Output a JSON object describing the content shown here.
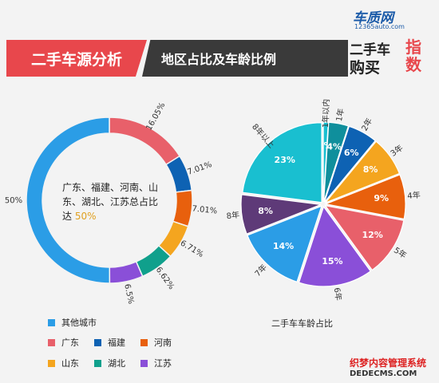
{
  "header": {
    "title": "二手车源分析",
    "subtitle": "地区占比及车龄比例"
  },
  "logo": {
    "site": "车质网",
    "url": "12365auto.com",
    "line1": "二手车",
    "line2": "购买",
    "zhi": "指数"
  },
  "watermark": {
    "line1": "织梦内容管理系统",
    "line2": "DEDECMS.COM"
  },
  "donut_center": {
    "text": "广东、福建、河南、山东、湖北、江苏总占比达",
    "pct": "50%"
  },
  "pie_caption": "二手车车龄占比",
  "colors": {
    "other": "#2b9de6",
    "guangdong": "#e8606a",
    "fujian": "#0e62b3",
    "henan": "#e8600d",
    "shandong": "#f4a51f",
    "hubei": "#10a08c",
    "jiangsu": "#8a4fd8"
  },
  "legend": [
    {
      "label": "其他城市",
      "color": "#2b9de6"
    },
    {
      "label": "广东",
      "color": "#e8606a"
    },
    {
      "label": "福建",
      "color": "#0e62b3"
    },
    {
      "label": "河南",
      "color": "#e8600d"
    },
    {
      "label": "山东",
      "color": "#f4a51f"
    },
    {
      "label": "湖北",
      "color": "#10a08c"
    },
    {
      "label": "江苏",
      "color": "#8a4fd8"
    }
  ],
  "chart_data": [
    {
      "type": "pie",
      "subtype": "donut",
      "title": "地区占比",
      "slices": [
        {
          "name": "广东",
          "value": 16.05,
          "label": "16.05%",
          "color": "#e8606a"
        },
        {
          "name": "福建",
          "value": 7.01,
          "label": "7.01%",
          "color": "#0e62b3"
        },
        {
          "name": "河南",
          "value": 7.01,
          "label": "7.01%",
          "color": "#e8600d"
        },
        {
          "name": "山东",
          "value": 6.71,
          "label": "6.71%",
          "color": "#f4a51f"
        },
        {
          "name": "湖北",
          "value": 6.62,
          "label": "6.62%",
          "color": "#10a08c"
        },
        {
          "name": "江苏",
          "value": 6.5,
          "label": "6.5%",
          "color": "#8a4fd8"
        },
        {
          "name": "其他城市",
          "value": 50,
          "label": "50%",
          "color": "#2b9de6"
        }
      ]
    },
    {
      "type": "pie",
      "title": "二手车车龄占比",
      "slices": [
        {
          "name": "1年以内",
          "value": 1,
          "label": "1%",
          "color": "#19bfd0"
        },
        {
          "name": "1年",
          "value": 4,
          "label": "4%",
          "color": "#0f8f9c"
        },
        {
          "name": "2年",
          "value": 6,
          "label": "6%",
          "color": "#0e62b3"
        },
        {
          "name": "3年",
          "value": 8,
          "label": "8%",
          "color": "#f4a51f"
        },
        {
          "name": "4年",
          "value": 9,
          "label": "9%",
          "color": "#e8600d"
        },
        {
          "name": "5年",
          "value": 12,
          "label": "12%",
          "color": "#e8606a"
        },
        {
          "name": "6年",
          "value": 15,
          "label": "15%",
          "color": "#8a4fd8"
        },
        {
          "name": "7年",
          "value": 14,
          "label": "14%",
          "color": "#2b9de6"
        },
        {
          "name": "8年",
          "value": 8,
          "label": "8%",
          "color": "#5e3a78"
        },
        {
          "name": "8年以上",
          "value": 23,
          "label": "23%",
          "color": "#19bfd0"
        }
      ]
    }
  ]
}
